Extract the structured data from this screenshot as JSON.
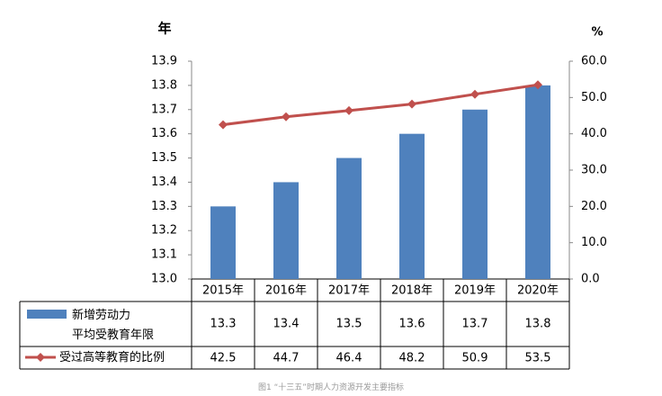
{
  "chart_data": {
    "type": "bar-line",
    "caption": "图1 “十三五”时期人力资源开发主要指标",
    "y_label": "年",
    "y2_label": "%",
    "categories": [
      "2015年",
      "2016年",
      "2017年",
      "2018年",
      "2019年",
      "2020年"
    ],
    "series": [
      {
        "name": "新增劳动力\n平均受教育年限",
        "type": "bar",
        "color": "#4f81bd",
        "values": [
          13.3,
          13.4,
          13.5,
          13.6,
          13.7,
          13.8
        ]
      },
      {
        "name": "受过高等教育的比例",
        "type": "line",
        "axis": "y2",
        "color": "#c0504d",
        "values": [
          42.5,
          44.7,
          46.4,
          48.2,
          50.9,
          53.5
        ]
      }
    ],
    "ylim": [
      13.0,
      13.9
    ],
    "yticks": [
      {
        "value": 13,
        "label": "13.0"
      },
      13.1,
      13.2,
      13.3,
      13.4,
      13.5,
      13.6,
      13.7,
      13.8,
      13.9
    ],
    "y2lim": [
      0,
      60
    ],
    "y2ticks": [
      {
        "value": 0,
        "label": "0.0"
      },
      {
        "value": 10,
        "label": "10.0"
      },
      {
        "value": 20,
        "label": "20.0"
      },
      {
        "value": 30,
        "label": "30.0"
      },
      {
        "value": 40,
        "label": "40.0"
      },
      {
        "value": 50,
        "label": "50.0"
      },
      {
        "value": 60,
        "label": "60.0"
      }
    ],
    "grid": false
  }
}
